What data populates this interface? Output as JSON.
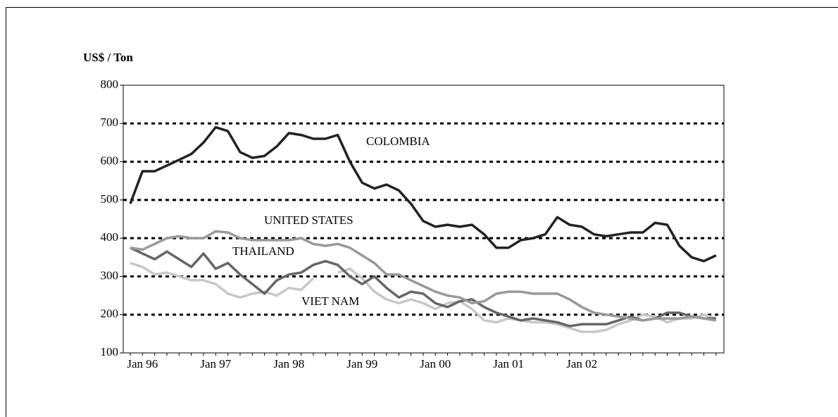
{
  "chart_data": {
    "type": "line",
    "ylabel": "US$ / Ton",
    "categories": [
      null,
      "Jan 96",
      null,
      null,
      null,
      null,
      null,
      "Jan 97",
      null,
      null,
      null,
      null,
      null,
      "Jan 98",
      null,
      null,
      null,
      null,
      null,
      "Jan 99",
      null,
      null,
      null,
      null,
      null,
      "Jan 00",
      null,
      null,
      null,
      null,
      null,
      "Jan 01",
      null,
      null,
      null,
      null,
      null,
      "Jan 02",
      null,
      null,
      null,
      null,
      null,
      null,
      null,
      null,
      null,
      null,
      null
    ],
    "series": [
      {
        "name": "COLOMBIA",
        "color": "#222222",
        "values": [
          490,
          575,
          575,
          590,
          605,
          620,
          650,
          690,
          680,
          625,
          610,
          615,
          640,
          675,
          670,
          660,
          660,
          670,
          600,
          545,
          530,
          540,
          525,
          490,
          445,
          430,
          435,
          430,
          435,
          410,
          375,
          375,
          395,
          400,
          410,
          455,
          435,
          430,
          410,
          405,
          410,
          415,
          415,
          440,
          435,
          380,
          350,
          340,
          355
        ]
      },
      {
        "name": "UNITED STATES",
        "color": "#999999",
        "values": [
          375,
          370,
          385,
          400,
          405,
          400,
          400,
          418,
          415,
          400,
          395,
          395,
          395,
          395,
          400,
          385,
          380,
          385,
          375,
          355,
          335,
          305,
          305,
          290,
          275,
          260,
          250,
          245,
          230,
          235,
          255,
          260,
          260,
          255,
          255,
          255,
          240,
          220,
          205,
          200,
          195,
          190,
          185,
          190,
          190,
          190,
          195,
          190,
          185
        ]
      },
      {
        "name": "THAILAND",
        "color": "#666666",
        "values": [
          375,
          360,
          345,
          365,
          345,
          325,
          360,
          320,
          335,
          305,
          280,
          255,
          290,
          305,
          310,
          330,
          340,
          330,
          300,
          280,
          300,
          270,
          245,
          260,
          255,
          230,
          220,
          235,
          240,
          220,
          205,
          195,
          185,
          190,
          185,
          180,
          170,
          175,
          175,
          175,
          185,
          195,
          185,
          190,
          205,
          205,
          195,
          190,
          190
        ]
      },
      {
        "name": "VIET NAM",
        "color": "#c8c8c8",
        "values": [
          335,
          325,
          305,
          310,
          300,
          290,
          290,
          280,
          255,
          245,
          255,
          260,
          250,
          270,
          265,
          295,
          null,
          310,
          320,
          295,
          260,
          240,
          230,
          240,
          230,
          215,
          230,
          235,
          215,
          185,
          180,
          190,
          185,
          180,
          180,
          175,
          165,
          155,
          155,
          160,
          175,
          185,
          200,
          195,
          180,
          190,
          190,
          200,
          190
        ]
      }
    ],
    "ylim": [
      100,
      800
    ],
    "yticks": [
      100,
      200,
      300,
      400,
      500,
      600,
      700,
      800
    ],
    "grid": true
  }
}
